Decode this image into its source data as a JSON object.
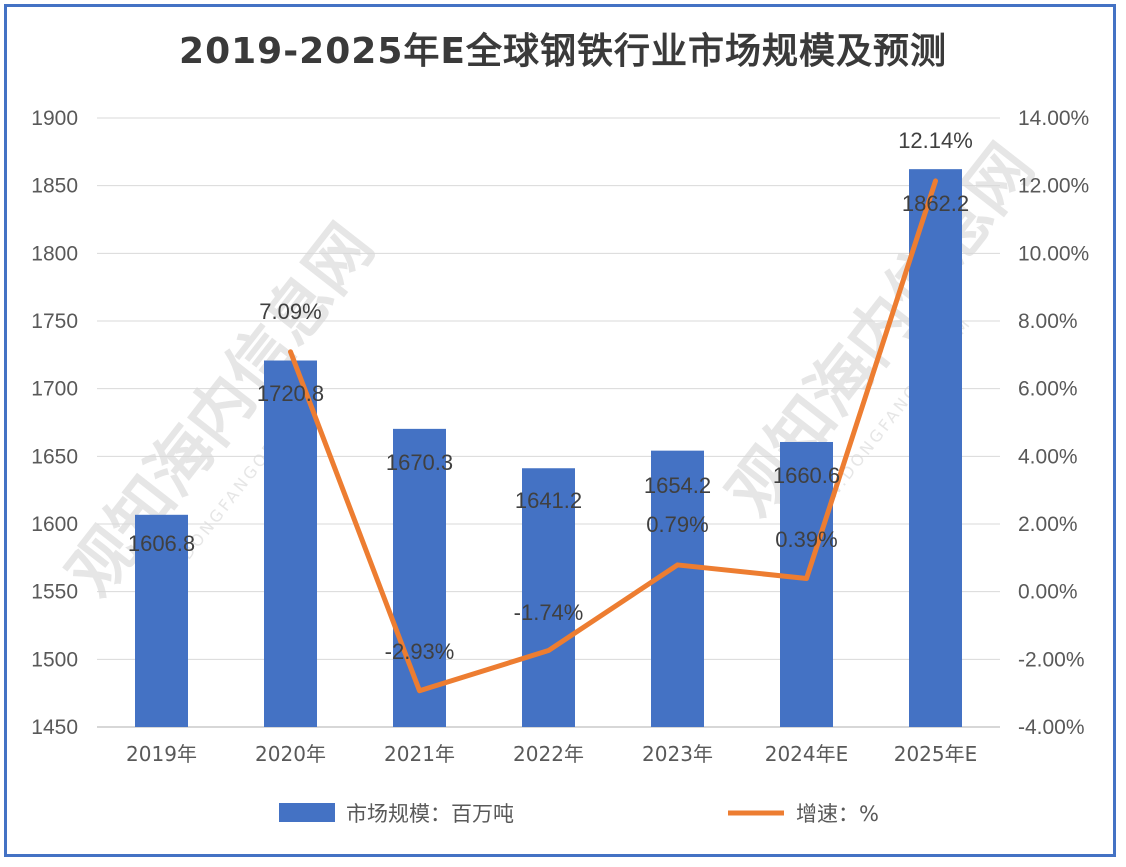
{
  "title": "2019-2025年E全球钢铁行业市场规模及预测",
  "watermark": {
    "cn": "观知海内信息网",
    "en": "WWW.DONGFANGQB.COM"
  },
  "chart_data": {
    "type": "bar",
    "categories": [
      "2019年",
      "2020年",
      "2021年",
      "2022年",
      "2023年",
      "2024年E",
      "2025年E"
    ],
    "series": [
      {
        "name": "市场规模：百万吨",
        "type": "bar",
        "axis": "left",
        "color": "#4472c4",
        "values": [
          1606.8,
          1720.8,
          1670.3,
          1641.2,
          1654.2,
          1660.6,
          1862.2
        ],
        "labels": [
          "1606.8",
          "1720.8",
          "1670.3",
          "1641.2",
          "1654.2",
          "1660.6",
          "1862.2"
        ]
      },
      {
        "name": "增速：%",
        "type": "line",
        "axis": "right",
        "color": "#ed7d31",
        "values": [
          null,
          7.09,
          -2.93,
          -1.74,
          0.79,
          0.39,
          12.14
        ],
        "labels": [
          "",
          "7.09%",
          "-2.93%",
          "-1.74%",
          "0.79%",
          "0.39%",
          "12.14%"
        ]
      }
    ],
    "y_left": {
      "min": 1450,
      "max": 1900,
      "ticks": [
        "1450",
        "1500",
        "1550",
        "1600",
        "1650",
        "1700",
        "1750",
        "1800",
        "1850",
        "1900"
      ]
    },
    "y_right": {
      "min": -4,
      "max": 14,
      "ticks": [
        "-4.00%",
        "-2.00%",
        "0.00%",
        "2.00%",
        "4.00%",
        "6.00%",
        "8.00%",
        "10.00%",
        "12.00%",
        "14.00%"
      ]
    },
    "grid": true,
    "legend": "bottom"
  }
}
